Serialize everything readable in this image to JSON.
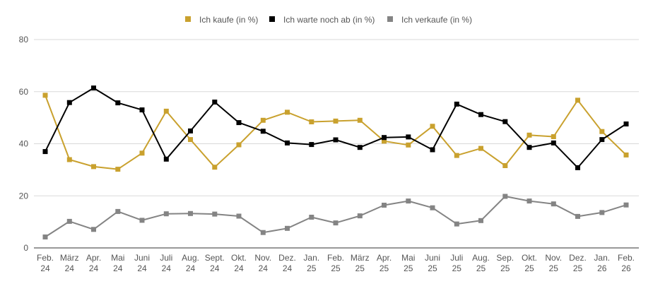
{
  "chart_data": {
    "type": "line",
    "title": "",
    "xlabel": "",
    "ylabel": "",
    "ylim": [
      0,
      80
    ],
    "yticks": [
      0,
      20,
      40,
      60,
      80
    ],
    "grid": true,
    "legend_position": "top-center",
    "categories": [
      [
        "Feb.",
        "24"
      ],
      [
        "März",
        "24"
      ],
      [
        "Apr.",
        "24"
      ],
      [
        "Mai",
        "24"
      ],
      [
        "Juni",
        "24"
      ],
      [
        "Juli",
        "24"
      ],
      [
        "Aug.",
        "24"
      ],
      [
        "Sept.",
        "24"
      ],
      [
        "Okt.",
        "24"
      ],
      [
        "Nov.",
        "24"
      ],
      [
        "Dez.",
        "24"
      ],
      [
        "Jan.",
        "25"
      ],
      [
        "Feb.",
        "25"
      ],
      [
        "März",
        "25"
      ],
      [
        "Apr.",
        "25"
      ],
      [
        "Mai",
        "25"
      ],
      [
        "Juni",
        "25"
      ],
      [
        "Juli",
        "25"
      ],
      [
        "Aug.",
        "25"
      ],
      [
        "Sep.",
        "25"
      ],
      [
        "Okt.",
        "25"
      ],
      [
        "Nov.",
        "25"
      ],
      [
        "Dez.",
        "25"
      ],
      [
        "Jan.",
        "26"
      ],
      [
        "Feb.",
        "26"
      ]
    ],
    "series": [
      {
        "name": "Ich kaufe (in %)",
        "color": "#c9a12e",
        "values": [
          58.6,
          33.9,
          31.2,
          30.2,
          36.4,
          52.5,
          41.6,
          31.0,
          39.6,
          49.0,
          52.1,
          48.4,
          48.7,
          49.0,
          41.0,
          39.5,
          46.7,
          35.5,
          38.2,
          31.6,
          43.3,
          42.7,
          56.7,
          44.7,
          35.7
        ]
      },
      {
        "name": "Ich warte noch ab (in %)",
        "color": "#000000",
        "values": [
          37.0,
          55.8,
          61.4,
          55.7,
          53.0,
          34.1,
          44.9,
          56.0,
          48.1,
          44.8,
          40.3,
          39.7,
          41.5,
          38.6,
          42.4,
          42.6,
          37.7,
          55.2,
          51.2,
          48.5,
          38.6,
          40.3,
          30.8,
          41.6,
          47.6
        ]
      },
      {
        "name": "Ich verkaufe (in %)",
        "color": "#848484",
        "values": [
          4.2,
          10.2,
          7.1,
          14.0,
          10.6,
          13.1,
          13.2,
          13.0,
          12.2,
          5.9,
          7.5,
          11.8,
          9.6,
          12.3,
          16.4,
          18.0,
          15.4,
          9.2,
          10.5,
          19.8,
          18.0,
          16.9,
          12.1,
          13.6,
          16.5
        ]
      }
    ]
  }
}
